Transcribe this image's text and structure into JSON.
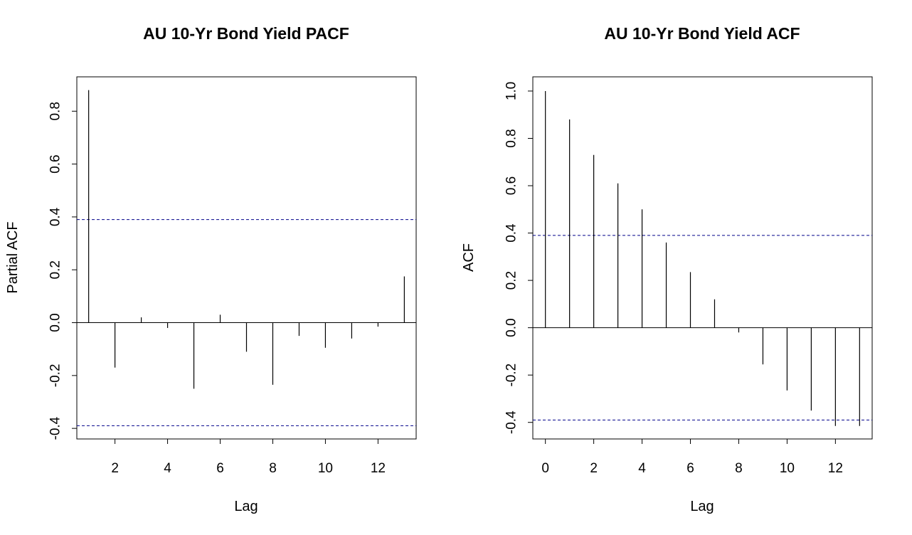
{
  "chart_data": [
    {
      "type": "bar",
      "title": "AU 10-Yr Bond Yield PACF",
      "xlabel": "Lag",
      "ylabel": "Partial ACF",
      "x": [
        1,
        2,
        3,
        4,
        5,
        6,
        7,
        8,
        9,
        10,
        11,
        12,
        13
      ],
      "values": [
        0.88,
        -0.17,
        0.02,
        -0.02,
        -0.25,
        0.03,
        -0.11,
        -0.235,
        -0.05,
        -0.095,
        -0.06,
        -0.015,
        0.175
      ],
      "confidence_bound": 0.39,
      "xlim": [
        0.55,
        13.45
      ],
      "ylim": [
        -0.44,
        0.93
      ],
      "xticks": [
        2,
        4,
        6,
        8,
        10,
        12
      ],
      "yticks": [
        -0.4,
        -0.2,
        0.0,
        0.2,
        0.4,
        0.6,
        0.8
      ],
      "ytick_labels": [
        "-0.4",
        "-0.2",
        "0.0",
        "0.2",
        "0.4",
        "0.6",
        "0.8"
      ],
      "grid": false,
      "colors": {
        "bars": "#000000",
        "confidence": "#00008b"
      }
    },
    {
      "type": "bar",
      "title": "AU 10-Yr Bond Yield ACF",
      "xlabel": "Lag",
      "ylabel": "ACF",
      "x": [
        0,
        1,
        2,
        3,
        4,
        5,
        6,
        7,
        8,
        9,
        10,
        11,
        12,
        13
      ],
      "values": [
        1.0,
        0.88,
        0.73,
        0.61,
        0.5,
        0.36,
        0.235,
        0.12,
        -0.02,
        -0.155,
        -0.265,
        -0.35,
        -0.415,
        -0.415
      ],
      "confidence_bound": 0.39,
      "xlim": [
        -0.52,
        13.52
      ],
      "ylim": [
        -0.47,
        1.06
      ],
      "xticks": [
        0,
        2,
        4,
        6,
        8,
        10,
        12
      ],
      "yticks": [
        -0.4,
        -0.2,
        0.0,
        0.2,
        0.4,
        0.6,
        0.8,
        1.0
      ],
      "ytick_labels": [
        "-0.4",
        "-0.2",
        "0.0",
        "0.2",
        "0.4",
        "0.6",
        "0.8",
        "1.0"
      ],
      "grid": false,
      "colors": {
        "bars": "#000000",
        "confidence": "#00008b"
      }
    }
  ]
}
